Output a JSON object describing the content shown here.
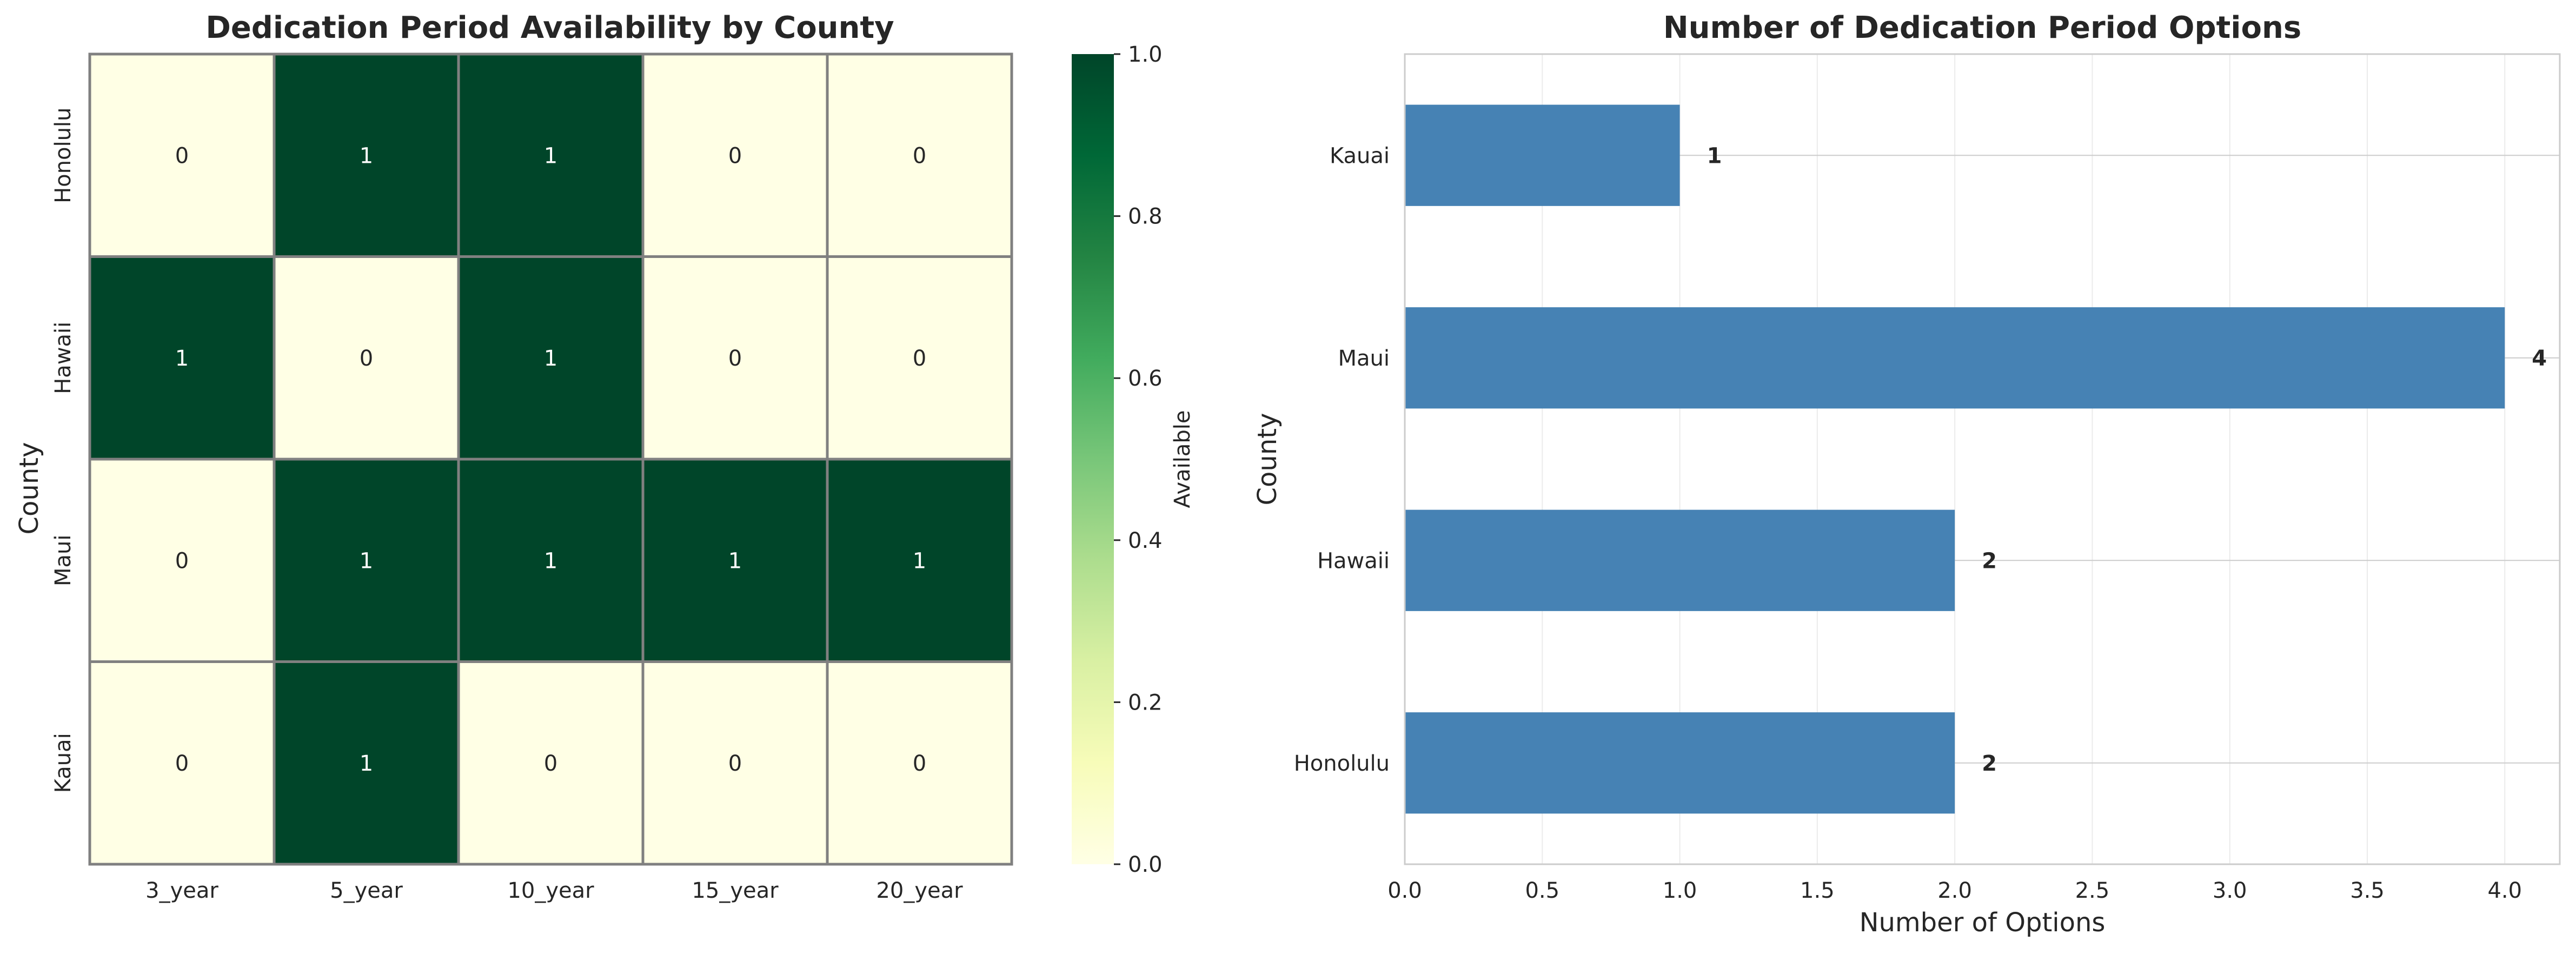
{
  "chart_data": [
    {
      "type": "heatmap",
      "title": "Dedication Period Availability by County",
      "xlabel": "",
      "ylabel": "County",
      "x_categories": [
        "3_year",
        "5_year",
        "10_year",
        "15_year",
        "20_year"
      ],
      "y_categories": [
        "Honolulu",
        "Hawaii",
        "Maui",
        "Kauai"
      ],
      "values": [
        [
          0,
          1,
          1,
          0,
          0
        ],
        [
          1,
          0,
          1,
          0,
          0
        ],
        [
          0,
          1,
          1,
          1,
          1
        ],
        [
          0,
          1,
          0,
          0,
          0
        ]
      ],
      "colorbar": {
        "label": "Available",
        "range": [
          0,
          1
        ],
        "ticks": [
          "0.0",
          "0.2",
          "0.4",
          "0.6",
          "0.8",
          "1.0"
        ],
        "colormap": "YlGn",
        "low_color": "#ffffe5",
        "high_color": "#004529"
      }
    },
    {
      "type": "bar",
      "orientation": "horizontal",
      "title": "Number of Dedication Period Options",
      "xlabel": "Number of Options",
      "ylabel": "County",
      "categories": [
        "Honolulu",
        "Hawaii",
        "Maui",
        "Kauai"
      ],
      "values": [
        2,
        2,
        4,
        1
      ],
      "xlim": [
        0,
        4.2
      ],
      "xticks": [
        "0.0",
        "0.5",
        "1.0",
        "1.5",
        "2.0",
        "2.5",
        "3.0",
        "3.5",
        "4.0"
      ],
      "grid": true,
      "bar_color": "#4682b4"
    }
  ]
}
